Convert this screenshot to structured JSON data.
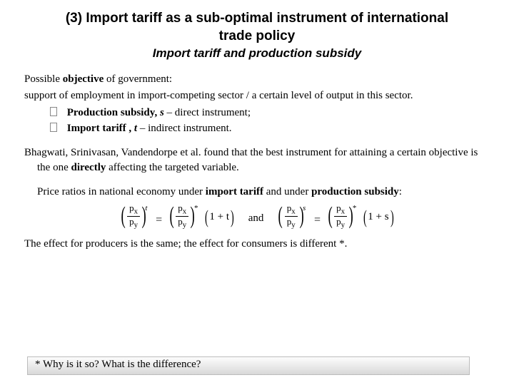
{
  "title_line1": "(3) Import tariff as a sub-optimal instrument of international",
  "title_line2": "trade policy",
  "subtitle": "Import tariff and production subsidy",
  "intro_prefix": "Possible ",
  "intro_bold": "objective",
  "intro_suffix": " of  government:",
  "support_line": "support of employment  in import-competing sector / a certain level of output in this sector.",
  "bullet1_bold": "Production subsidy, ",
  "bullet1_ital": "s",
  "bullet1_rest": "  – direct instrument;",
  "bullet2_bold": "Import tariff , ",
  "bullet2_ital": "t",
  "bullet2_rest": " – indirect instrument.",
  "bhag_prefix": "Bhagwati, Srinivasan, Vandendorpe et al. found that the best instrument for attaining a certain objective is the one ",
  "bhag_bold": "directly",
  "bhag_suffix": " affecting the targeted variable.",
  "ratio_prefix": "Price ratios in national economy under ",
  "ratio_b1": "import tariff",
  "ratio_mid": " and under ",
  "ratio_b2": "production subsidy",
  "ratio_end": ":",
  "px": "p",
  "subx": "x",
  "py": "p",
  "suby": "y",
  "sup_t": "t",
  "sup_star": "*",
  "sup_s": "s",
  "one_plus_t": "1 + t",
  "one_plus_s": "1 + s",
  "eq": "=",
  "and": "and",
  "effect_line": "The effect for producers is the same; the effect for consumers is different *.",
  "footer": "* Why is it so? What is the difference?"
}
